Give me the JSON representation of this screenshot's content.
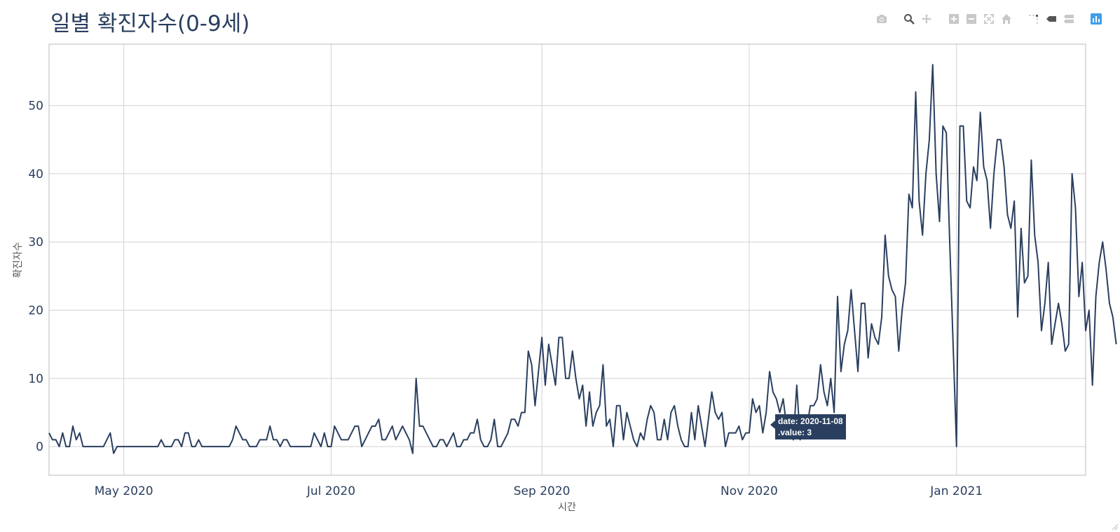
{
  "title": "일별 확진자수(0-9세)",
  "tooltip": {
    "date_line": "date: 2020-11-08",
    "value_line": ".value:  3"
  },
  "modebar": {
    "buttons": [
      "camera-icon",
      "zoom-icon",
      "pan-icon",
      "zoom-in-icon",
      "zoom-out-icon",
      "autoscale-icon",
      "reset-axes-icon",
      "spike-lines-icon",
      "hover-closest-icon",
      "hover-compare-icon",
      "plotly-logo-icon"
    ]
  },
  "colors": {
    "line": "#2a3f5f",
    "grid": "#d2d2d2",
    "axis_text": "#2a3f5f",
    "axis_title": "#555555"
  },
  "chart_data": {
    "type": "line",
    "title": "일별 확진자수(0-9세)",
    "xlabel": "시간",
    "ylabel": "확진자수",
    "grid": true,
    "x_ticks": [
      "May 2020",
      "Jul 2020",
      "Sep 2020",
      "Nov 2020",
      "Jan 2021"
    ],
    "x_tick_dates": [
      "2020-05-01",
      "2020-07-01",
      "2020-09-01",
      "2020-11-01",
      "2021-01-01"
    ],
    "y_ticks": [
      0,
      10,
      20,
      30,
      40,
      50
    ],
    "xlim": [
      "2020-04-09",
      "2021-02-08"
    ],
    "ylim": [
      -4.2,
      59
    ],
    "series": [
      {
        "start_date": "2020-04-09",
        "values": [
          2,
          1,
          1,
          0,
          2,
          0,
          0,
          3,
          1,
          2,
          0,
          0,
          0,
          0,
          0,
          0,
          0,
          1,
          2,
          -1,
          0,
          0,
          0,
          0,
          0,
          0,
          0,
          0,
          0,
          0,
          0,
          0,
          0,
          1,
          0,
          0,
          0,
          1,
          1,
          0,
          2,
          2,
          0,
          0,
          1,
          0,
          0,
          0,
          0,
          0,
          0,
          0,
          0,
          0,
          1,
          3,
          2,
          1,
          1,
          0,
          0,
          0,
          1,
          1,
          1,
          3,
          1,
          1,
          0,
          1,
          1,
          0,
          0,
          0,
          0,
          0,
          0,
          0,
          2,
          1,
          0,
          2,
          0,
          0,
          3,
          2,
          1,
          1,
          1,
          2,
          3,
          3,
          0,
          1,
          2,
          3,
          3,
          4,
          1,
          1,
          2,
          3,
          1,
          2,
          3,
          2,
          1,
          -1,
          10,
          3,
          3,
          2,
          1,
          0,
          0,
          1,
          1,
          0,
          1,
          2,
          0,
          0,
          1,
          1,
          2,
          2,
          4,
          1,
          0,
          0,
          1,
          4,
          0,
          0,
          1,
          2,
          4,
          4,
          3,
          5,
          5,
          14,
          12,
          6,
          11,
          16,
          9,
          15,
          12,
          9,
          16,
          16,
          10,
          10,
          14,
          10,
          7,
          9,
          3,
          8,
          3,
          5,
          6,
          12,
          3,
          4,
          0,
          6,
          6,
          1,
          5,
          3,
          1,
          0,
          2,
          1,
          4,
          6,
          5,
          1,
          1,
          4,
          1,
          5,
          6,
          3,
          1,
          0,
          0,
          5,
          1,
          6,
          3,
          0,
          4,
          8,
          5,
          4,
          5,
          0,
          2,
          2,
          2,
          3,
          1,
          2,
          2,
          7,
          5,
          6,
          2,
          5,
          11,
          8,
          7,
          5,
          7,
          3,
          2,
          1,
          9,
          1,
          3,
          3,
          6,
          6,
          7,
          12,
          8,
          6,
          10,
          5,
          22,
          11,
          15,
          17,
          23,
          17,
          11,
          21,
          21,
          13,
          18,
          16,
          15,
          19,
          31,
          25,
          23,
          22,
          14,
          20,
          24,
          37,
          35,
          52,
          36,
          31,
          40,
          45,
          56,
          40,
          33,
          47,
          46,
          30,
          15,
          0,
          47,
          47,
          36,
          35,
          41,
          39,
          49,
          41,
          39,
          32,
          40,
          45,
          45,
          41,
          34,
          32,
          36,
          19,
          32,
          24,
          25,
          42,
          31,
          27,
          17,
          21,
          27,
          15,
          18,
          21,
          18,
          14,
          15,
          40,
          35,
          22,
          27,
          17,
          20,
          9,
          22,
          27,
          30,
          26,
          21,
          19,
          15
        ]
      }
    ]
  }
}
